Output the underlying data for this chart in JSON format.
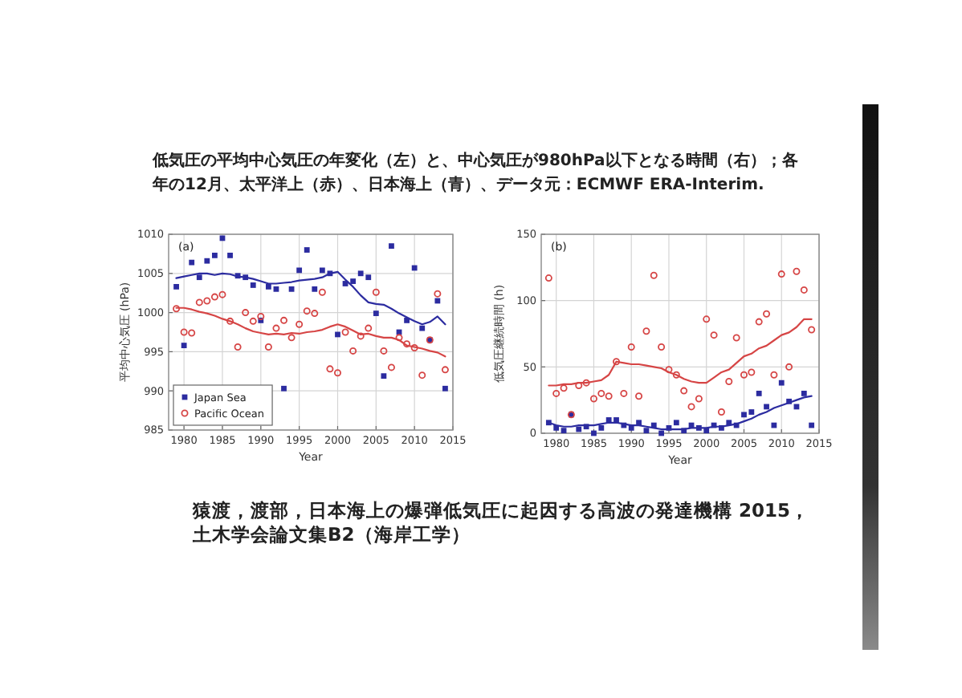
{
  "chart_data": [
    {
      "type": "scatter",
      "title": "低気圧の平均中心気圧の年変化（左）と、中心気圧が980hPa以下となる時間（右）；各年の12月、太平洋上（赤）、日本海上（青）、データ元：ECMWF ERA-Interim.",
      "annotations": [
        "(a)",
        "猿渡，渡部，日本海上の爆弾低気圧に起因する高波の発達機構 2015，土木学会論文集B2（海岸工学）"
      ],
      "xlabel": "Year",
      "ylabel": "平均中心気圧 (hPa)",
      "xlim": [
        1978,
        2015
      ],
      "ylim": [
        985,
        1010
      ],
      "xticks": [
        1980,
        1985,
        1990,
        1995,
        2000,
        2005,
        2010,
        2015
      ],
      "yticks": [
        985,
        990,
        995,
        1000,
        1005,
        1010
      ],
      "grid": true,
      "legend": "bottom left",
      "x": [
        1979,
        1980,
        1981,
        1982,
        1983,
        1984,
        1985,
        1986,
        1987,
        1988,
        1989,
        1990,
        1991,
        1992,
        1993,
        1994,
        1995,
        1996,
        1997,
        1998,
        1999,
        2000,
        2001,
        2002,
        2003,
        2004,
        2005,
        2006,
        2007,
        2008,
        2009,
        2010,
        2011,
        2012,
        2013,
        2014
      ],
      "series": [
        {
          "name": "Japan Sea",
          "color": "#2c2ca0",
          "marker": "square",
          "values": [
            1003.3,
            995.8,
            1006.4,
            1004.5,
            1006.6,
            1007.3,
            1009.5,
            1007.3,
            1004.7,
            1004.5,
            1003.5,
            999.0,
            1003.3,
            1003.0,
            990.3,
            1003.0,
            1005.4,
            1008.0,
            1003.0,
            1005.4,
            1005.0,
            997.2,
            1003.7,
            1004.0,
            1005.0,
            1004.5,
            999.9,
            991.9,
            1008.5,
            997.5,
            999.0,
            1005.7,
            998.0,
            996.5,
            1001.5,
            990.3
          ]
        },
        {
          "name": "Pacific Ocean",
          "color": "#d64545",
          "marker": "circle",
          "values": [
            1000.5,
            997.5,
            997.4,
            1001.3,
            1001.5,
            1002.0,
            1002.3,
            998.9,
            995.6,
            1000.0,
            998.9,
            999.5,
            995.6,
            998.0,
            999.0,
            996.8,
            998.5,
            1000.2,
            999.9,
            1002.6,
            992.8,
            992.3,
            997.5,
            995.1,
            997.0,
            998.0,
            1002.6,
            995.1,
            993.0,
            996.8,
            996.0,
            995.5,
            992.0,
            996.5,
            1002.4,
            992.7
          ]
        },
        {
          "type": "line",
          "color": "#2c2ca0",
          "values": [
            1004.4,
            1004.6,
            1004.8,
            1005.0,
            1005.0,
            1004.8,
            1005.0,
            1004.9,
            1004.6,
            1004.5,
            1004.3,
            1004.0,
            1003.7,
            1003.7,
            1003.8,
            1003.9,
            1004.1,
            1004.2,
            1004.3,
            1004.5,
            1005.0,
            1005.2,
            1004.2,
            1003.3,
            1002.2,
            1001.3,
            1001.1,
            1001.0,
            1000.5,
            999.9,
            999.4,
            998.9,
            998.5,
            998.8,
            999.5,
            998.5
          ]
        },
        {
          "type": "line",
          "color": "#d64545",
          "values": [
            1000.6,
            1000.6,
            1000.4,
            1000.1,
            999.9,
            999.6,
            999.2,
            998.9,
            998.5,
            998.0,
            997.6,
            997.4,
            997.2,
            997.3,
            997.2,
            997.4,
            997.3,
            997.5,
            997.6,
            997.8,
            998.2,
            998.5,
            998.2,
            997.7,
            997.2,
            997.3,
            997.0,
            996.8,
            996.8,
            996.5,
            995.8,
            995.6,
            995.4,
            995.1,
            994.9,
            994.4
          ]
        }
      ]
    },
    {
      "type": "scatter",
      "annotations": [
        "(b)"
      ],
      "xlabel": "Year",
      "ylabel": "低気圧継続時間 (h)",
      "xlim": [
        1978,
        2015
      ],
      "ylim": [
        0,
        150
      ],
      "xticks": [
        1980,
        1985,
        1990,
        1995,
        2000,
        2005,
        2010,
        2015
      ],
      "yticks": [
        0,
        50,
        100,
        150
      ],
      "grid": true,
      "x": [
        1979,
        1980,
        1981,
        1982,
        1983,
        1984,
        1985,
        1986,
        1987,
        1988,
        1989,
        1990,
        1991,
        1992,
        1993,
        1994,
        1995,
        1996,
        1997,
        1998,
        1999,
        2000,
        2001,
        2002,
        2003,
        2004,
        2005,
        2006,
        2007,
        2008,
        2009,
        2010,
        2011,
        2012,
        2013,
        2014
      ],
      "series": [
        {
          "color": "#2c2ca0",
          "marker": "square",
          "values": [
            8,
            4,
            2,
            14,
            3,
            5,
            0,
            4,
            10,
            10,
            6,
            4,
            8,
            2,
            6,
            0,
            4,
            8,
            2,
            6,
            4,
            2,
            6,
            4,
            8,
            6,
            14,
            16,
            30,
            20,
            6,
            38,
            24,
            20,
            30,
            6
          ]
        },
        {
          "color": "#d64545",
          "marker": "circle",
          "values": [
            117,
            30,
            34,
            14,
            36,
            38,
            26,
            30,
            28,
            54,
            30,
            65,
            28,
            77,
            119,
            65,
            48,
            44,
            32,
            20,
            26,
            86,
            74,
            16,
            39,
            72,
            44,
            46,
            84,
            90,
            44,
            120,
            50,
            122,
            108,
            78
          ]
        },
        {
          "type": "line",
          "color": "#2c2ca0",
          "values": [
            8,
            6,
            5,
            5,
            6,
            6,
            6,
            7,
            8,
            8,
            7,
            6,
            6,
            5,
            4,
            3,
            3,
            3,
            3,
            4,
            4,
            4,
            5,
            5,
            6,
            7,
            9,
            11,
            14,
            16,
            19,
            21,
            23,
            25,
            27,
            28
          ]
        },
        {
          "type": "line",
          "color": "#d64545",
          "values": [
            36,
            36,
            37,
            37,
            38,
            38,
            39,
            40,
            44,
            54,
            53,
            52,
            52,
            51,
            50,
            49,
            46,
            44,
            41,
            39,
            38,
            38,
            42,
            46,
            48,
            53,
            58,
            60,
            64,
            66,
            70,
            74,
            76,
            80,
            86,
            86
          ]
        }
      ]
    }
  ]
}
